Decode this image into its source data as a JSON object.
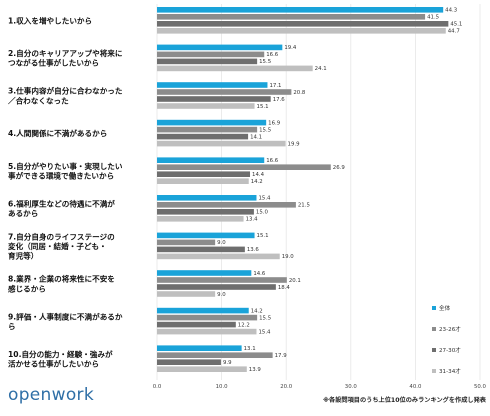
{
  "brand": "openwork",
  "footnote": "※各設問項目のうち上位10位のみランキングを作成し発表",
  "colors": {
    "series": [
      "#1aa3d9",
      "#8c8c8c",
      "#6e6e6e",
      "#bfbfbf"
    ],
    "gridline": "#e6e6e6",
    "brand": "#2f6fa6"
  },
  "chart_data": {
    "type": "bar",
    "orientation": "horizontal",
    "categories": [
      [
        "1.収入を増やしたいから"
      ],
      [
        "2.自分のキャリアアップや将来に",
        "つながる仕事がしたいから"
      ],
      [
        "3.仕事内容が自分に合わなかった",
        "／合わなくなった"
      ],
      [
        "4.人間関係に不満があるから"
      ],
      [
        "5.自分がやりたい事・実現したい",
        "事ができる環境で働きたいから"
      ],
      [
        "6.福利厚生などの待遇に不満が",
        "あるから"
      ],
      [
        "7.自分自身のライフステージの",
        "変化（同居・結婚・子ども・",
        "育児等）"
      ],
      [
        "8.業界・企業の将来性に不安を",
        "感じるから"
      ],
      [
        "9.評価・人事制度に不満があるか",
        "ら"
      ],
      [
        "10.自分の能力・経験・強みが",
        "活かせる仕事がしたいから"
      ]
    ],
    "series": [
      {
        "name": "全体",
        "values": [
          44.3,
          19.4,
          17.1,
          16.9,
          16.6,
          15.4,
          15.1,
          14.6,
          14.2,
          13.1
        ]
      },
      {
        "name": "23-26才",
        "values": [
          41.5,
          16.6,
          20.8,
          15.5,
          26.9,
          21.5,
          9.0,
          20.1,
          15.5,
          17.9
        ]
      },
      {
        "name": "27-30才",
        "values": [
          45.1,
          15.5,
          17.6,
          14.1,
          14.4,
          15.0,
          13.6,
          18.4,
          12.2,
          9.9
        ]
      },
      {
        "name": "31-34才",
        "values": [
          44.7,
          24.1,
          15.1,
          19.9,
          14.2,
          13.4,
          19.0,
          9.0,
          15.4,
          13.9
        ]
      }
    ],
    "value_labels": [
      [
        "44.3",
        "41.5",
        "45.1",
        "44.7"
      ],
      [
        "19.4",
        "16.6",
        "15.5",
        "24.1"
      ],
      [
        "17.1",
        "20.8",
        "17.6",
        "15.1"
      ],
      [
        "16.9",
        "15.5",
        "14.1",
        "19.9"
      ],
      [
        "16.6",
        "26.9",
        "14.4",
        "14.2"
      ],
      [
        "15.4",
        "21.5",
        "15.0",
        "13.4"
      ],
      [
        "15.1",
        "9.0",
        "13.6",
        "19.0"
      ],
      [
        "14.6",
        "20.1",
        "18.4",
        "9.0"
      ],
      [
        "14.2",
        "15.5",
        "12.2",
        "15.4"
      ],
      [
        "13.1",
        "17.9",
        "9.9",
        "13.9"
      ]
    ],
    "xlim": [
      0,
      50
    ],
    "xticks": [
      "0.0",
      "10.0",
      "20.0",
      "30.0",
      "40.0",
      "50.0"
    ],
    "grid": true,
    "legend_position": "right"
  }
}
